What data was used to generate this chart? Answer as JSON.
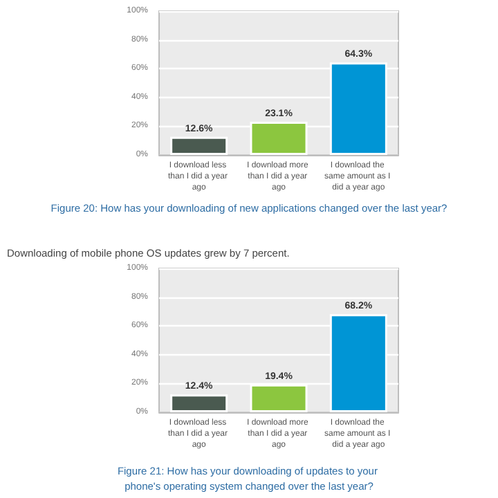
{
  "chart_data": [
    {
      "type": "bar",
      "title": "Figure 20: How has your downloading of new applications changed over the last year?",
      "categories": [
        "I download less than I did a year ago",
        "I download more than I did a year ago",
        "I download the same amount as I did a year ago"
      ],
      "values": [
        12.6,
        23.1,
        64.3
      ],
      "colors": [
        "#4a5a50",
        "#8cc63f",
        "#0095d5"
      ],
      "value_labels": [
        "12.6%",
        "23.1%",
        "64.3%"
      ],
      "ylim": [
        0,
        100
      ],
      "yticks": [
        {
          "value": 0,
          "label": "0%"
        },
        {
          "value": 20,
          "label": "20%"
        },
        {
          "value": 40,
          "label": "40%"
        },
        {
          "value": 60,
          "label": "60%"
        },
        {
          "value": 80,
          "label": "80%"
        },
        {
          "value": 100,
          "label": "100%"
        }
      ],
      "grid": "y"
    },
    {
      "type": "bar",
      "title": "Figure 21: How has your downloading of updates to your phone's operating system changed over the last year?",
      "annotations": [
        "Downloading of mobile phone OS updates grew by 7 percent."
      ],
      "categories": [
        "I download less than I did a year ago",
        "I download more than I did a year ago",
        "I download the same amount as I did a year ago"
      ],
      "values": [
        12.4,
        19.4,
        68.2
      ],
      "colors": [
        "#4a5a50",
        "#8cc63f",
        "#0095d5"
      ],
      "value_labels": [
        "12.4%",
        "19.4%",
        "68.2%"
      ],
      "ylim": [
        0,
        100
      ],
      "yticks": [
        {
          "value": 0,
          "label": "0%"
        },
        {
          "value": 20,
          "label": "20%"
        },
        {
          "value": 40,
          "label": "40%"
        },
        {
          "value": 60,
          "label": "60%"
        },
        {
          "value": 80,
          "label": "80%"
        },
        {
          "value": 100,
          "label": "100%"
        }
      ],
      "grid": "y"
    }
  ]
}
